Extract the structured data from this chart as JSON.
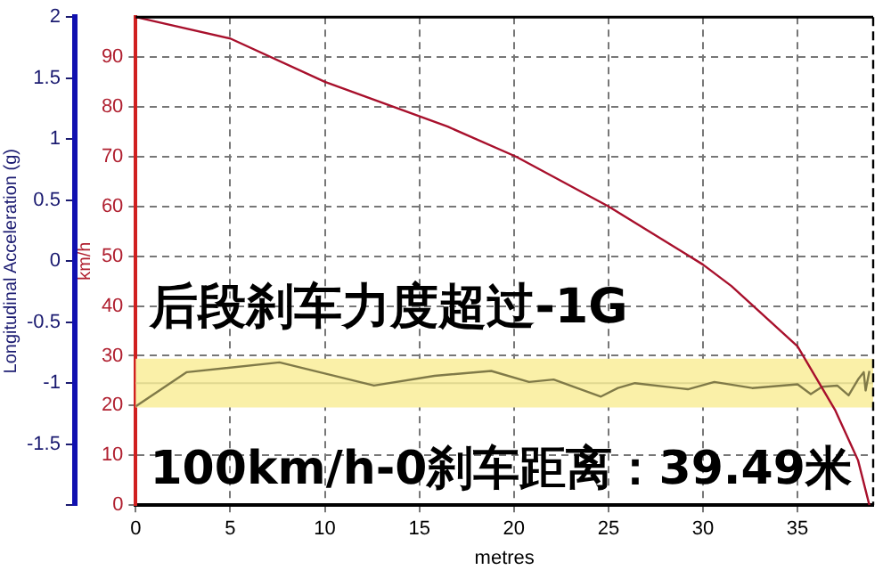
{
  "chart_data": {
    "type": "line",
    "xlabel": "metres",
    "ylabel": "Longitudinal Acceleration (g)",
    "y2label": "km/h",
    "marker": "none",
    "grid": true,
    "xlim": [
      0,
      39
    ],
    "xticks": [
      0,
      5,
      10,
      15,
      20,
      25,
      30,
      35
    ],
    "ylim": [
      -2,
      2
    ],
    "yticks": [
      {
        "value": -2,
        "label": null
      },
      -1.5,
      -1,
      -0.5,
      0,
      0.5,
      1,
      1.5,
      2
    ],
    "y2lim": [
      0,
      98
    ],
    "y2ticks": [
      0,
      10,
      20,
      30,
      40,
      50,
      60,
      70,
      80,
      90
    ],
    "series": [
      {
        "color": "#a8102c",
        "axis": "y2",
        "x": [
          0,
          5,
          10,
          16.5,
          20.1,
          25,
          30,
          31.5,
          35,
          37,
          38.2,
          38.8
        ],
        "values": [
          98,
          93.7,
          85,
          76,
          70,
          60,
          48.3,
          44,
          31.9,
          19,
          9,
          0
        ]
      },
      {
        "color": "#807a48",
        "axis": "y",
        "x": [
          0,
          2.7,
          7.6,
          12.6,
          15.8,
          18.8,
          20.8,
          22.1,
          24.6,
          25.5,
          26.4,
          29.2,
          30.6,
          32.6,
          35,
          35.7,
          36.3,
          37.1,
          37.7,
          38.2,
          38.5,
          38.6,
          38.8
        ],
        "values": [
          -1.19,
          -0.91,
          -0.83,
          -1.02,
          -0.94,
          -0.9,
          -0.99,
          -0.97,
          -1.11,
          -1.04,
          -1,
          -1.05,
          -0.99,
          -1.04,
          -1.01,
          -1.09,
          -1.03,
          -1.02,
          -1.1,
          -0.97,
          -0.91,
          -1.06,
          -0.9
        ]
      }
    ],
    "bands": [
      {
        "axis": "y",
        "from": -1.2,
        "to": -0.8,
        "color": "#faf0a8"
      }
    ],
    "ref_lines": [
      {
        "axis": "y",
        "value": -1,
        "color": "#e0d890"
      }
    ],
    "annotations": [
      "后段刹车力度超过-1G",
      "100km/h-0刹车距离：39.49米"
    ]
  }
}
